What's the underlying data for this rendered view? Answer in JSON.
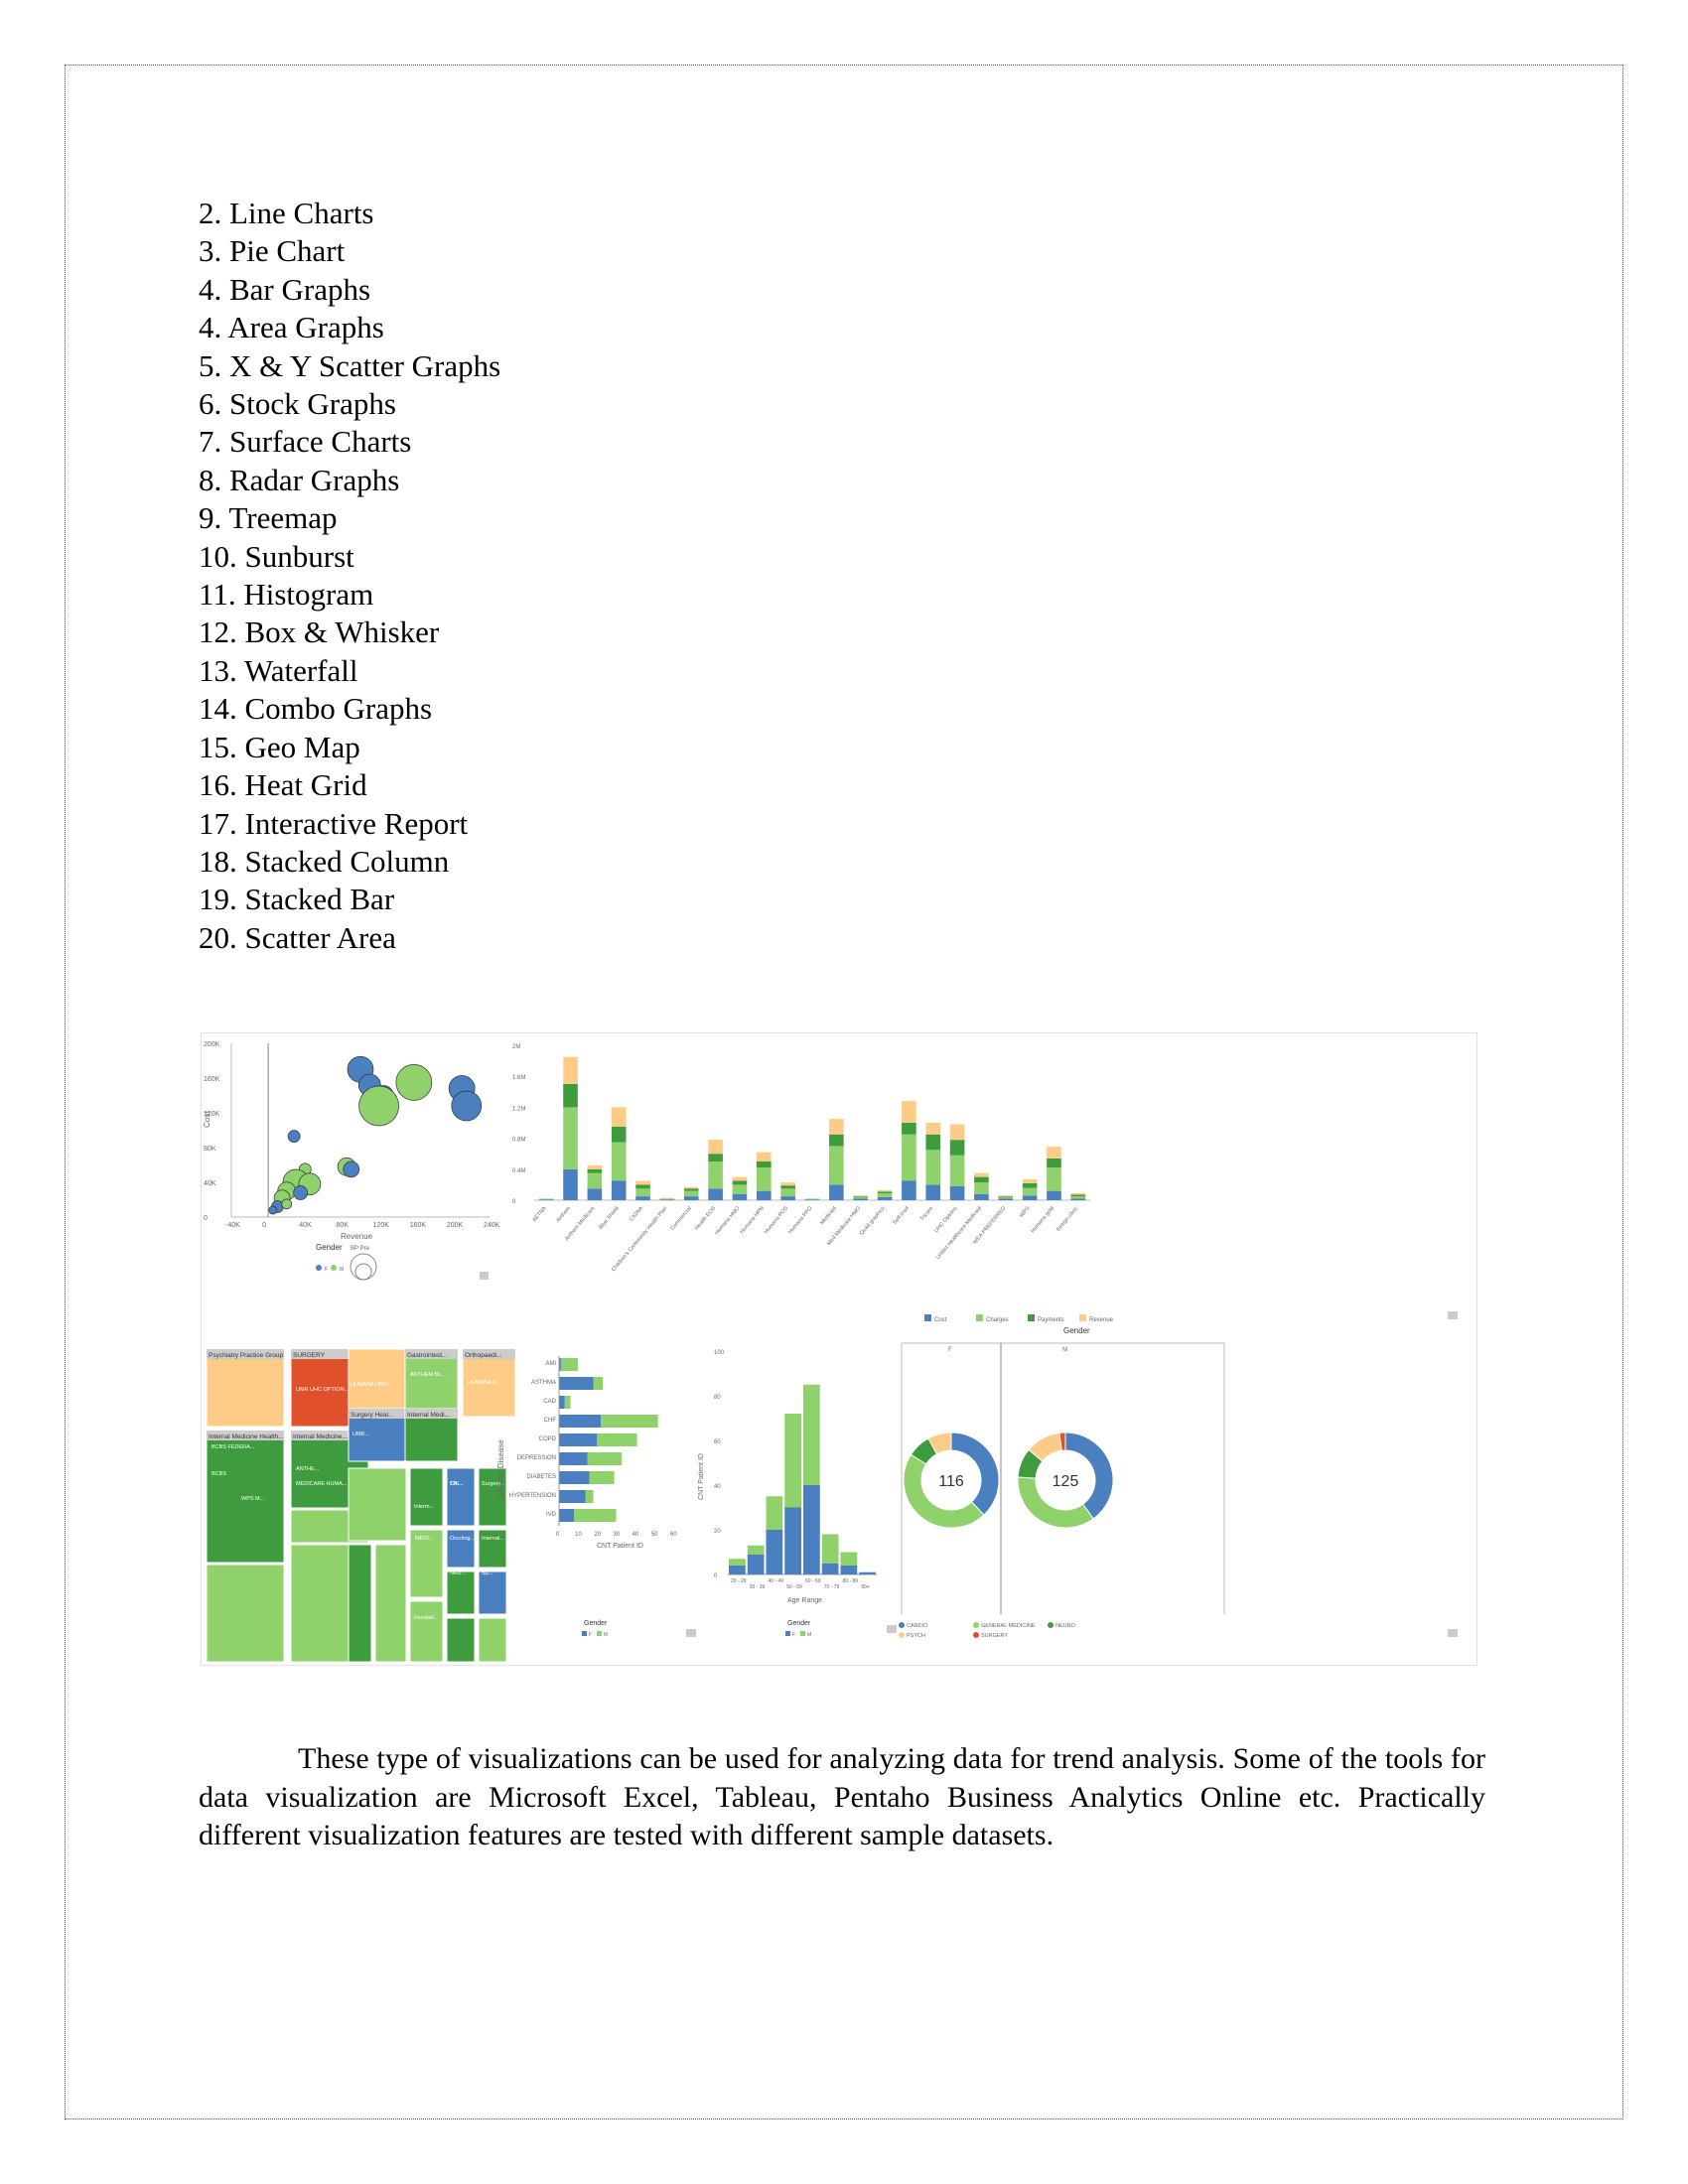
{
  "list_items": [
    "2. Line Charts",
    "3. Pie Chart",
    "4. Bar Graphs",
    "4. Area Graphs",
    "5. X & Y Scatter Graphs",
    "6. Stock Graphs",
    "7. Surface Charts",
    "8. Radar Graphs",
    "9. Treemap",
    "10. Sunburst",
    "11. Histogram",
    "12. Box & Whisker",
    "13. Waterfall",
    "14. Combo Graphs",
    "15. Geo Map",
    "16. Heat Grid",
    "17. Interactive Report",
    "18. Stacked Column",
    "19. Stacked Bar",
    "20. Scatter Area"
  ],
  "paragraph": "These type of visualizations can be used for analyzing data for trend analysis. Some of the tools for data visualization are Microsoft Excel, Tableau, Pentaho Business Analytics Online etc. Practically different visualization features are tested with different sample datasets.",
  "colors": {
    "blue": "#4a80c0",
    "green": "#8fd16a",
    "darkgreen": "#3e9b3e",
    "orange": "#ffcc88",
    "red": "#e0502a"
  },
  "chart_data": [
    {
      "type": "scatter",
      "xlabel": "Revenue",
      "ylabel": "Cost",
      "x_ticks": [
        "-40K",
        "0",
        "40K",
        "80K",
        "120K",
        "160K",
        "200K",
        "240K"
      ],
      "y_ticks": [
        "0",
        "40K",
        "80K",
        "120K",
        "160K",
        "200K"
      ],
      "legend": {
        "gender_label": "Gender",
        "size_label": "BP Pre",
        "entries": [
          "F",
          "M"
        ]
      },
      "points": [
        {
          "x": 100,
          "y": 170,
          "r": 13,
          "g": "F"
        },
        {
          "x": 110,
          "y": 152,
          "r": 11,
          "g": "F"
        },
        {
          "x": 125,
          "y": 140,
          "r": 10,
          "g": "F"
        },
        {
          "x": 120,
          "y": 128,
          "r": 20,
          "g": "M"
        },
        {
          "x": 158,
          "y": 155,
          "r": 18,
          "g": "M"
        },
        {
          "x": 210,
          "y": 148,
          "r": 13,
          "g": "F"
        },
        {
          "x": 215,
          "y": 128,
          "r": 15,
          "g": "F"
        },
        {
          "x": 28,
          "y": 93,
          "r": 6,
          "g": "F"
        },
        {
          "x": 85,
          "y": 58,
          "r": 9,
          "g": "M"
        },
        {
          "x": 90,
          "y": 55,
          "r": 8,
          "g": "F"
        },
        {
          "x": 40,
          "y": 55,
          "r": 6,
          "g": "M"
        },
        {
          "x": 30,
          "y": 40,
          "r": 13,
          "g": "M"
        },
        {
          "x": 45,
          "y": 38,
          "r": 11,
          "g": "M"
        },
        {
          "x": 20,
          "y": 30,
          "r": 9,
          "g": "M"
        },
        {
          "x": 15,
          "y": 22,
          "r": 8,
          "g": "M"
        },
        {
          "x": 35,
          "y": 28,
          "r": 7,
          "g": "F"
        },
        {
          "x": 10,
          "y": 12,
          "r": 6,
          "g": "F"
        },
        {
          "x": 20,
          "y": 15,
          "r": 5,
          "g": "M"
        },
        {
          "x": 5,
          "y": 8,
          "r": 4,
          "g": "F"
        }
      ]
    },
    {
      "type": "bar",
      "stacked": true,
      "y_ticks": [
        "0",
        "0.4M",
        "0.8M",
        "1.2M",
        "1.6M",
        "2M"
      ],
      "legend": [
        "Cost",
        "Charges",
        "Payments",
        "Revenue"
      ],
      "categories": [
        "AETNA",
        "Anthem",
        "Anthem Medicare",
        "Blue Shield",
        "CIGNA",
        "Children's Community Health Plan",
        "Commercial",
        "Health EOS",
        "Humana HMO",
        "Humana HPN",
        "Humana POS",
        "Humana PPO",
        "Medicaid",
        "Med Medicare HMO",
        "Quad graphics",
        "Self-Insd",
        "Tricare",
        "UHC Options",
        "United Healthcare Medicaid",
        "WEA PREFERRED",
        "WPS",
        "Humana gold",
        "foreign clinic"
      ],
      "series": [
        {
          "name": "Cost",
          "values": [
            0.01,
            0.4,
            0.15,
            0.25,
            0.05,
            0.01,
            0.05,
            0.15,
            0.08,
            0.12,
            0.05,
            0.01,
            0.2,
            0.02,
            0.04,
            0.25,
            0.2,
            0.18,
            0.08,
            0.02,
            0.06,
            0.12,
            0.02
          ]
        },
        {
          "name": "Charges",
          "values": [
            0.01,
            0.8,
            0.2,
            0.5,
            0.1,
            0.01,
            0.07,
            0.35,
            0.12,
            0.3,
            0.1,
            0.01,
            0.5,
            0.02,
            0.05,
            0.6,
            0.45,
            0.4,
            0.15,
            0.02,
            0.1,
            0.3,
            0.03
          ]
        },
        {
          "name": "Payments",
          "values": [
            0.0,
            0.3,
            0.05,
            0.2,
            0.05,
            0.0,
            0.03,
            0.1,
            0.05,
            0.08,
            0.04,
            0.0,
            0.15,
            0.01,
            0.02,
            0.15,
            0.2,
            0.2,
            0.07,
            0.01,
            0.06,
            0.12,
            0.02
          ]
        },
        {
          "name": "Revenue",
          "values": [
            0.0,
            0.35,
            0.05,
            0.25,
            0.05,
            0.01,
            0.02,
            0.18,
            0.05,
            0.12,
            0.04,
            0.0,
            0.2,
            0.01,
            0.02,
            0.28,
            0.15,
            0.2,
            0.05,
            0.01,
            0.05,
            0.15,
            0.02
          ]
        }
      ]
    },
    {
      "type": "treemap",
      "tiles": [
        {
          "label": "Psychiatry Practice Group",
          "color": "orange"
        },
        {
          "label": "SURGERY",
          "color": "red"
        },
        {
          "label": "Gastrointest...",
          "color": "green"
        },
        {
          "label": "Orthopaedi...",
          "color": "orange"
        },
        {
          "label": "Internal Medicine Health...",
          "color": "darkgreen"
        },
        {
          "label": "Internal Medicine...",
          "color": "darkgreen"
        },
        {
          "label": "Surgery Heal...",
          "color": "blue"
        },
        {
          "label": "Internal Medi...",
          "color": "darkgreen"
        }
      ],
      "inner_labels": [
        "UMR UHC OPTION...",
        "HUMANA HMO",
        "ANTHEM BL...",
        "BCBS FEDERA...",
        "MEDICARE HUMA...",
        "BCBS",
        "WPS M...",
        "HUMANA P...",
        "ANTHE...",
        "UMR...",
        "TRI...",
        "MEDI...",
        "Renabili...",
        "NEU...",
        "Sp...",
        "Oncolog...",
        "Internal...",
        "Interm...",
        "CA...",
        "Surgery..."
      ]
    },
    {
      "type": "bar",
      "orientation": "horizontal",
      "stacked": true,
      "xlabel": "CNT Patient ID",
      "ylabel": "Chronic Disease",
      "x_ticks": [
        "0",
        "10",
        "20",
        "30",
        "40",
        "50",
        "60"
      ],
      "categories": [
        "AMI",
        "ASTHMA",
        "CAD",
        "CHF",
        "COPD",
        "DEPRESSION",
        "DIABETES",
        "HYPERTENSION",
        "IVD"
      ],
      "legend": {
        "title": "Gender",
        "entries": [
          "F",
          "M"
        ]
      },
      "series": [
        {
          "name": "F",
          "values": [
            1,
            18,
            3,
            22,
            20,
            15,
            16,
            14,
            8
          ]
        },
        {
          "name": "M",
          "values": [
            9,
            5,
            3,
            30,
            21,
            18,
            13,
            4,
            22
          ]
        }
      ]
    },
    {
      "type": "bar",
      "stacked": true,
      "xlabel": "Age Range",
      "ylabel": "CNT Patient ID",
      "y_ticks": [
        "0",
        "20",
        "40",
        "60",
        "80",
        "100"
      ],
      "categories": [
        "20 - 29",
        "30 - 39",
        "40 - 49",
        "50 - 59",
        "60 - 69",
        "70 - 79",
        "80 - 89",
        "90+"
      ],
      "legend": {
        "title": "Gender",
        "entries": [
          "F",
          "M"
        ]
      },
      "series": [
        {
          "name": "F",
          "values": [
            4,
            9,
            20,
            30,
            40,
            5,
            4,
            1
          ]
        },
        {
          "name": "M",
          "values": [
            3,
            4,
            15,
            42,
            45,
            13,
            6,
            0
          ]
        }
      ]
    },
    {
      "type": "pie",
      "title": "Gender",
      "panels": [
        {
          "label": "F",
          "total": "116",
          "slices": [
            {
              "name": "CARDIO",
              "v": 38
            },
            {
              "name": "GENERAL MEDICINE",
              "v": 46
            },
            {
              "name": "NEURO",
              "v": 8
            },
            {
              "name": "PSYCH",
              "v": 8
            }
          ]
        },
        {
          "label": "M",
          "total": "125",
          "slices": [
            {
              "name": "CARDIO",
              "v": 40
            },
            {
              "name": "GENERAL MEDICINE",
              "v": 36
            },
            {
              "name": "NEURO",
              "v": 10
            },
            {
              "name": "PSYCH",
              "v": 12
            },
            {
              "name": "SURGERY",
              "v": 2
            }
          ]
        }
      ],
      "legend": [
        "CARDIO",
        "GENERAL MEDICINE",
        "NEURO",
        "PSYCH",
        "SURGERY"
      ]
    }
  ]
}
